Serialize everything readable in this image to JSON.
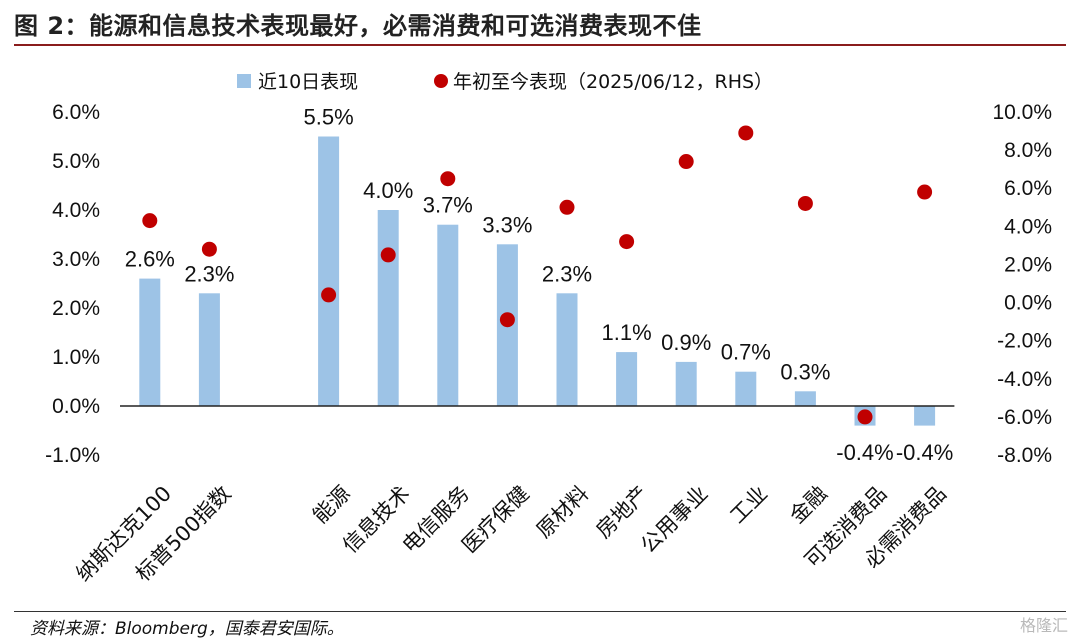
{
  "figure": {
    "title": "图 2：能源和信息技术表现最好，必需消费和可选消费表现不佳",
    "source": "资料来源：Bloomberg，国泰君安国际。",
    "watermark": "格隆汇"
  },
  "chart_data": {
    "type": "bar",
    "categories": [
      "纳斯达克100",
      "标普500指数",
      "",
      "能源",
      "信息技术",
      "电信服务",
      "医疗保健",
      "原材料",
      "房地产",
      "公用事业",
      "工业",
      "金融",
      "可选消费品",
      "必需消费品"
    ],
    "series": [
      {
        "name": "近10日表现",
        "kind": "bar",
        "axis": "left",
        "color": "#9dc3e6",
        "values": [
          2.6,
          2.3,
          null,
          5.5,
          4.0,
          3.7,
          3.3,
          2.3,
          1.1,
          0.9,
          0.7,
          0.3,
          -0.4,
          -0.4
        ],
        "labels": [
          "2.6%",
          "2.3%",
          "",
          "5.5%",
          "4.0%",
          "3.7%",
          "3.3%",
          "2.3%",
          "1.1%",
          "0.9%",
          "0.7%",
          "0.3%",
          "-0.4%",
          "-0.4%"
        ]
      },
      {
        "name": "年初至今表现（2025/06/12，RHS）",
        "kind": "scatter",
        "axis": "right",
        "color": "#c00000",
        "values": [
          4.3,
          2.8,
          null,
          0.4,
          2.5,
          6.5,
          -0.9,
          5.0,
          3.2,
          7.4,
          8.9,
          5.2,
          -6.0,
          5.8
        ]
      }
    ],
    "y_left": {
      "ylim": [
        -1.0,
        6.0
      ],
      "ticks": [
        6.0,
        5.0,
        4.0,
        3.0,
        2.0,
        1.0,
        0.0,
        -1.0
      ],
      "tick_labels": [
        "6.0%",
        "5.0%",
        "4.0%",
        "3.0%",
        "2.0%",
        "1.0%",
        "0.0%",
        "-1.0%"
      ]
    },
    "y_right": {
      "ylim": [
        -8.0,
        10.0
      ],
      "ticks": [
        10.0,
        8.0,
        6.0,
        4.0,
        2.0,
        0.0,
        -2.0,
        -4.0,
        -6.0,
        -8.0
      ],
      "tick_labels": [
        "10.0%",
        "8.0%",
        "6.0%",
        "4.0%",
        "2.0%",
        "0.0%",
        "-2.0%",
        "-4.0%",
        "-6.0%",
        "-8.0%"
      ]
    },
    "legend_position": "top",
    "grid": false
  }
}
